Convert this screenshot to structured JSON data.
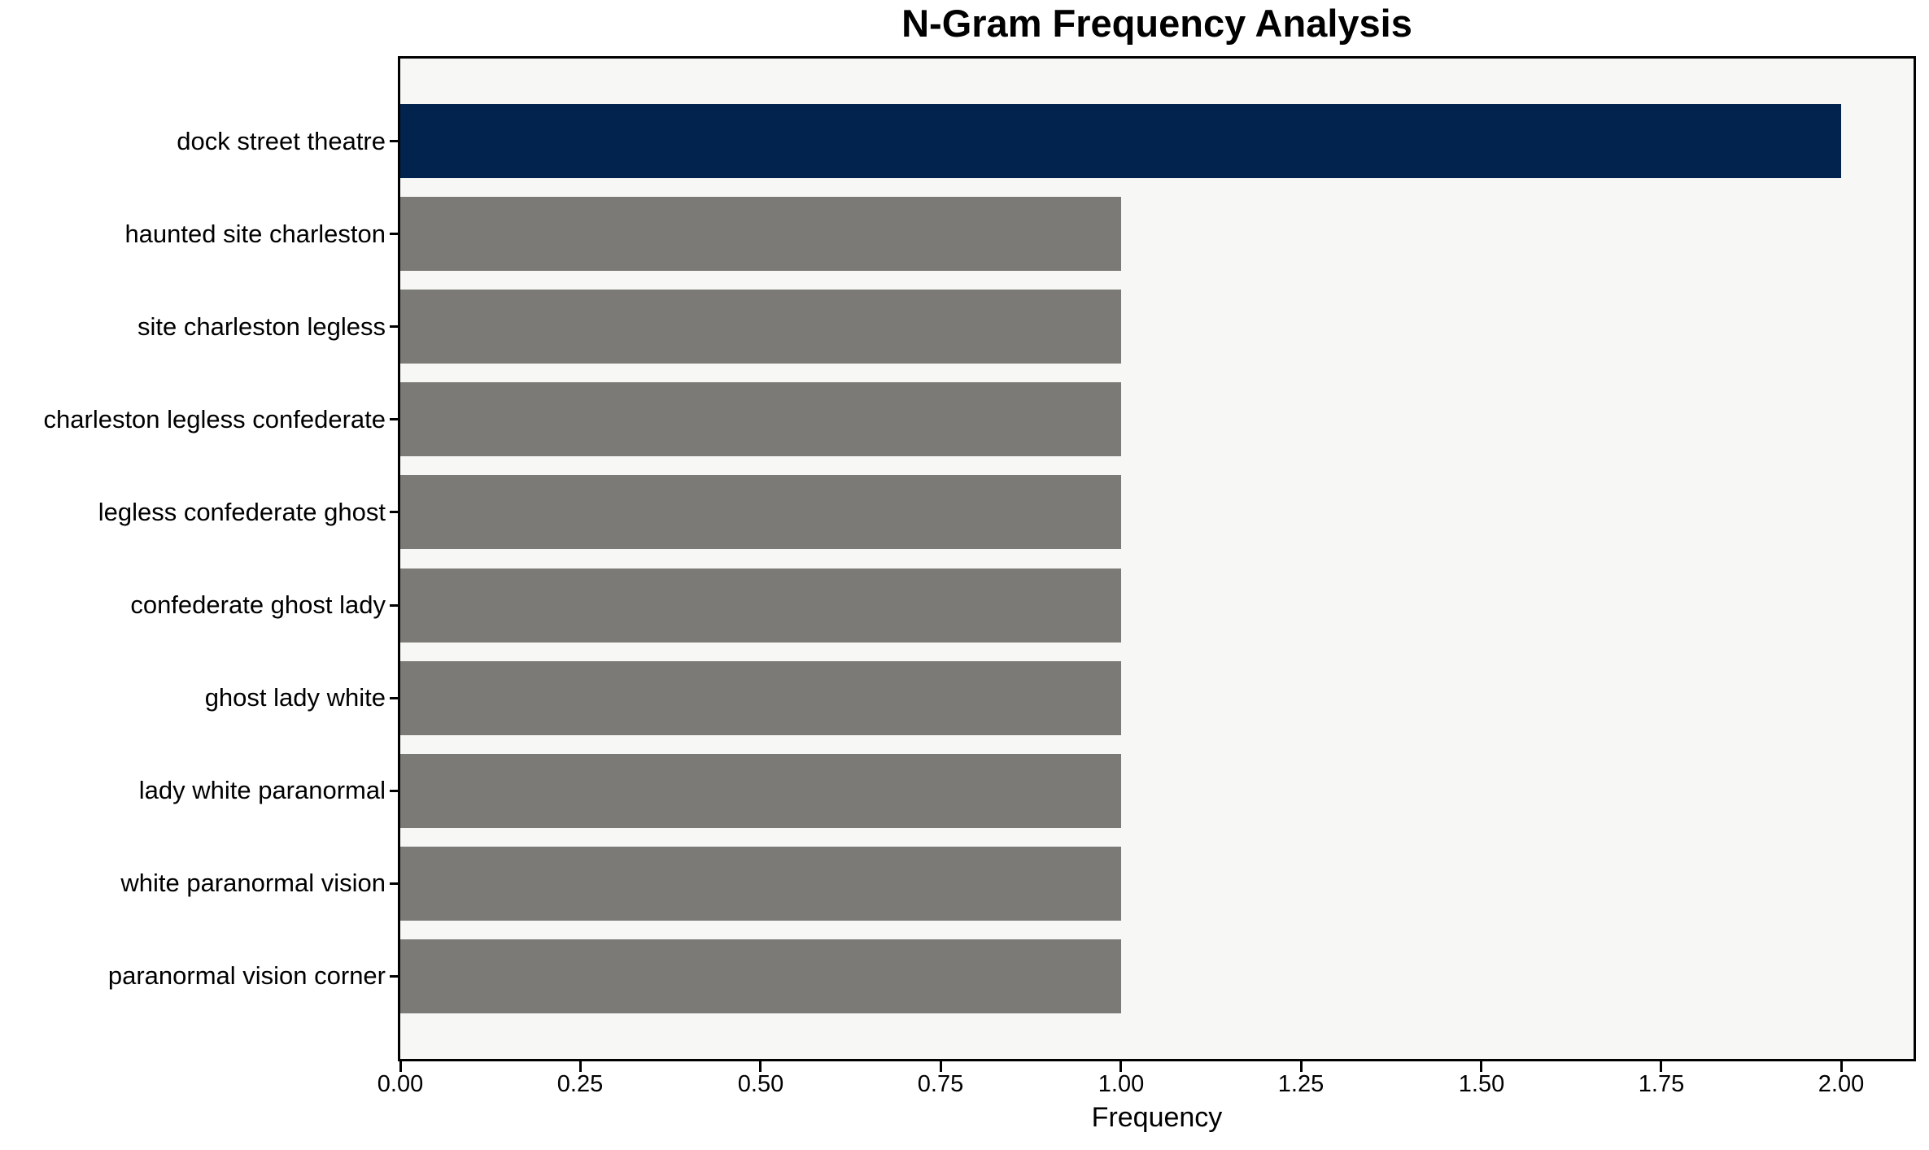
{
  "chart_data": {
    "type": "bar",
    "orientation": "horizontal",
    "title": "N-Gram Frequency Analysis",
    "xlabel": "Frequency",
    "ylabel": "",
    "categories": [
      "dock street theatre",
      "haunted site charleston",
      "site charleston legless",
      "charleston legless confederate",
      "legless confederate ghost",
      "confederate ghost lady",
      "ghost lady white",
      "lady white paranormal",
      "white paranormal vision",
      "paranormal vision corner"
    ],
    "values": [
      2,
      1,
      1,
      1,
      1,
      1,
      1,
      1,
      1,
      1
    ],
    "bar_colors": [
      "#02234d",
      "#7b7a76",
      "#7b7a76",
      "#7b7a76",
      "#7b7a76",
      "#7b7a76",
      "#7b7a76",
      "#7b7a76",
      "#7b7a76",
      "#7b7a76"
    ],
    "xlim": [
      0,
      2.1
    ],
    "xticks": [
      {
        "value": 0,
        "label": "0.00"
      },
      {
        "value": 0.25,
        "label": "0.25"
      },
      {
        "value": 0.5,
        "label": "0.50"
      },
      {
        "value": 0.75,
        "label": "0.75"
      },
      {
        "value": 1,
        "label": "1.00"
      },
      {
        "value": 1.25,
        "label": "1.25"
      },
      {
        "value": 1.5,
        "label": "1.50"
      },
      {
        "value": 1.75,
        "label": "1.75"
      },
      {
        "value": 2,
        "label": "2.00"
      }
    ],
    "grid": false,
    "legend": null,
    "colors": {
      "highlight_bar": "#02234d",
      "default_bar": "#7b7a76",
      "plot_background": "#f7f7f6",
      "figure_background": "#ffffff",
      "axis_line": "#000000",
      "text": "#000000"
    }
  }
}
